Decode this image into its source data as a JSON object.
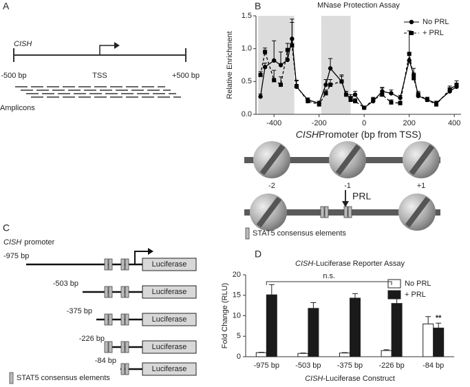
{
  "panel_labels": [
    "A",
    "B",
    "C",
    "D"
  ],
  "panel_a": {
    "gene": "CISH",
    "left": "-500 bp",
    "tss": "TSS",
    "right": "+500 bp",
    "amplicons": "Amplicons"
  },
  "panel_b_diagram": {
    "nucleosomes": [
      "-2",
      "-1",
      "+1"
    ],
    "treatment": "PRL",
    "legend": "STAT5 consensus elements"
  },
  "panel_c": {
    "gene": "CISH",
    "title": "promoter",
    "constructs": [
      "-975 bp",
      "-503 bp",
      "-375 bp",
      "-226 bp",
      "-84 bp"
    ],
    "reporter": "Luciferase",
    "legend": "STAT5 consensus elements"
  },
  "chart_data": [
    {
      "type": "line",
      "title": "MNase Protection Assay",
      "xlabel_italic": "CISH",
      "xlabel": "Promoter (bp from TSS)",
      "ylabel": "Relative Enrichment",
      "x": [
        -460,
        -440,
        -400,
        -370,
        -340,
        -320,
        -300,
        -250,
        -200,
        -170,
        -150,
        -100,
        -80,
        -60,
        -40,
        0,
        40,
        80,
        120,
        160,
        200,
        220,
        240,
        280,
        320,
        380,
        410
      ],
      "shaded_regions": [
        [
          -470,
          -310
        ],
        [
          -190,
          -60
        ]
      ],
      "series": [
        {
          "name": "No PRL",
          "color": "#000000",
          "marker": "circle",
          "dashed": false,
          "values": [
            0.27,
            0.72,
            0.82,
            0.75,
            0.83,
            1.15,
            0.42,
            0.22,
            0.17,
            0.45,
            0.7,
            0.5,
            0.3,
            0.25,
            0.3,
            0.1,
            0.2,
            0.35,
            0.32,
            0.25,
            0.82,
            0.6,
            0.28,
            0.22,
            0.17,
            0.35,
            0.42
          ],
          "errors": [
            0.04,
            0.06,
            0.3,
            0.2,
            0.15,
            0.3,
            0.1,
            0.03,
            0.03,
            0.08,
            0.15,
            0.1,
            0.05,
            0.05,
            0.05,
            0.02,
            0.04,
            0.06,
            0.05,
            0.04,
            0.12,
            0.1,
            0.05,
            0.04,
            0.03,
            0.05,
            0.05
          ]
        },
        {
          "name": "+ PRL",
          "color": "#000000",
          "marker": "square",
          "dashed": true,
          "values": [
            0.6,
            0.95,
            0.52,
            0.45,
            0.98,
            1.05,
            0.43,
            0.2,
            0.15,
            0.32,
            0.45,
            0.5,
            0.3,
            0.22,
            0.2,
            0.1,
            0.22,
            0.3,
            0.18,
            0.17,
            0.92,
            0.55,
            0.3,
            0.22,
            0.15,
            0.38,
            0.45
          ],
          "errors": [
            0.05,
            0.06,
            0.15,
            0.12,
            0.1,
            0.35,
            0.08,
            0.03,
            0.03,
            0.05,
            0.08,
            0.08,
            0.05,
            0.04,
            0.04,
            0.02,
            0.04,
            0.1,
            0.04,
            0.03,
            0.35,
            0.08,
            0.05,
            0.04,
            0.03,
            0.05,
            0.06
          ]
        }
      ],
      "xlim": [
        -480,
        430
      ],
      "xticks": [
        -400,
        -200,
        0,
        200,
        400
      ],
      "ylim": [
        0,
        1.5
      ],
      "yticks": [
        {
          "value": 0,
          "label": "0.0"
        },
        0.5,
        {
          "value": 1,
          "label": "1.0"
        },
        1.5
      ],
      "legend": "top-right"
    },
    {
      "type": "bar",
      "title_italic": "CISH",
      "title": "-Luciferase Reporter Assay",
      "xlabel_italic": "CISH",
      "xlabel": "-Luciferase Construct",
      "ylabel": "Fold Change (RLU)",
      "categories": [
        "-975 bp",
        "-503 bp",
        "-375 bp",
        "-226 bp",
        "-84 bp"
      ],
      "series": [
        {
          "name": "No PRL",
          "color": "#ffffff",
          "values": [
            1.0,
            0.8,
            0.9,
            1.5,
            8.0
          ],
          "errors": [
            0.1,
            0.1,
            0.1,
            0.2,
            1.8
          ]
        },
        {
          "name": "+ PRL",
          "color": "#1a1a1a",
          "values": [
            15.1,
            11.8,
            14.3,
            13.0,
            7.0
          ],
          "errors": [
            2.5,
            1.4,
            1.1,
            1.8,
            1.2
          ]
        }
      ],
      "annotations": [
        {
          "text": "n.s.",
          "from": 0,
          "to": 3
        },
        {
          "text": "**",
          "category": 4,
          "series": 1
        }
      ],
      "ylim": [
        0,
        20
      ],
      "yticks": [
        0,
        5,
        10,
        15,
        20
      ],
      "legend": "top-right"
    }
  ]
}
